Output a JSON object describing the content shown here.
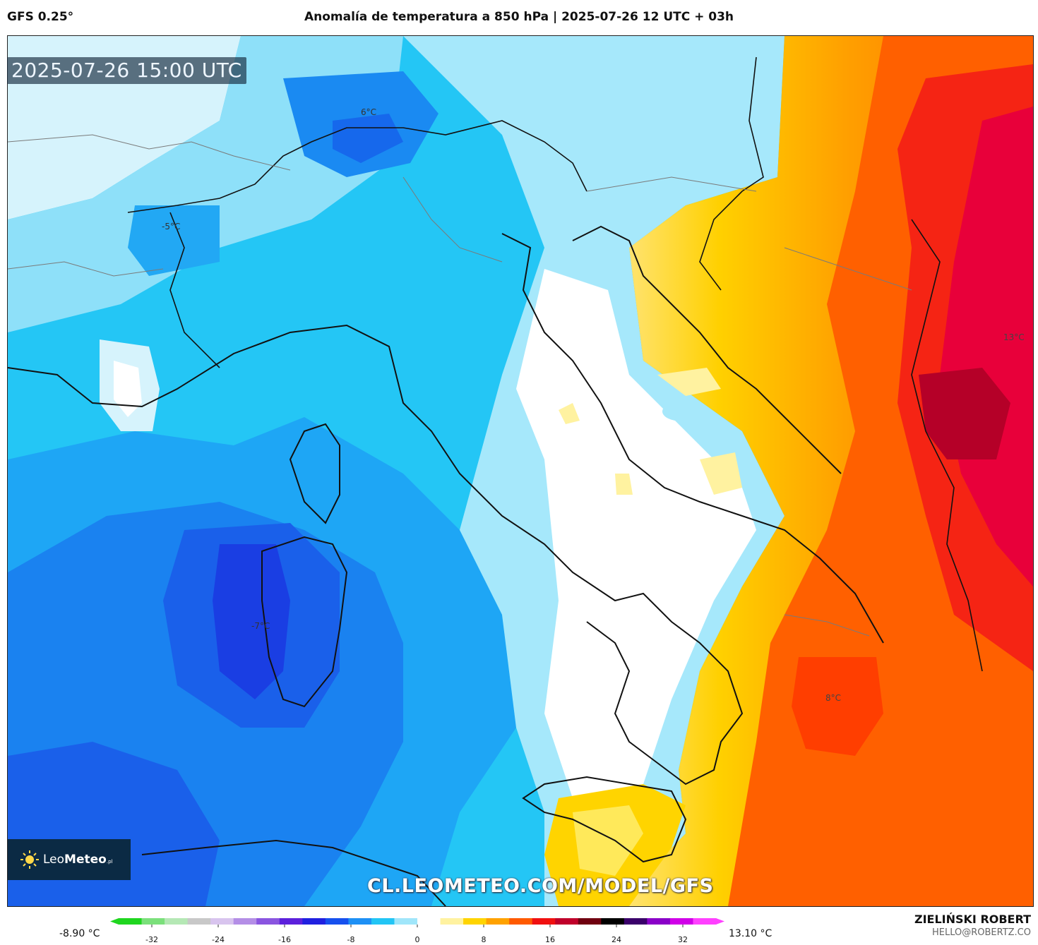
{
  "header": {
    "model": "GFS 0.25°",
    "title": "Anomalía de temperatura a 850 hPa | 2025-07-26 12 UTC + 03h"
  },
  "map": {
    "valid_time": "2025-07-26 15:00 UTC",
    "watermark_url": "CL.LEOMETEO.COM/MODEL/GFS",
    "labels": {
      "alps_north": "6°C",
      "france": "-5°C",
      "sardinia": "-7°C",
      "balkans": "13°C",
      "ionian": "8°C"
    }
  },
  "logo": {
    "name_light": "Leo",
    "name_bold": "Meteo",
    "suffix": ".pl"
  },
  "colorbar": {
    "min_label": "-8.90 °C",
    "max_label": "13.10 °C",
    "ticks": [
      "-32",
      "-24",
      "-16",
      "-8",
      "0",
      "8",
      "16",
      "24",
      "32"
    ],
    "tick_values": [
      -32,
      -24,
      -16,
      -8,
      0,
      8,
      16,
      24,
      32
    ],
    "range": [
      -36,
      36
    ],
    "colors": [
      "#1fd61f",
      "#7be07b",
      "#b5e8b5",
      "#c8c8c8",
      "#d8c4ee",
      "#b48ee6",
      "#8a55e0",
      "#5c20dc",
      "#2020e0",
      "#1650ee",
      "#1e90f5",
      "#22c5f5",
      "#a0e6fa",
      "#ffffff",
      "#fff2a0",
      "#ffd400",
      "#ffa200",
      "#ff5a00",
      "#f01010",
      "#c0002a",
      "#700010",
      "#000000",
      "#3a006a",
      "#8a00c8",
      "#d000e8",
      "#ff40ff"
    ]
  },
  "credits": {
    "author": "ZIELIŃSKI ROBERT",
    "email": "HELLO@ROBERTZ.CO"
  }
}
